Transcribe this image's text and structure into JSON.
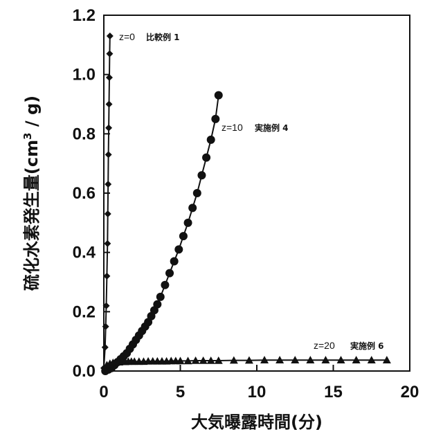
{
  "chart_data": {
    "type": "line",
    "title": "",
    "xlabel": "大気曝露時間(分)",
    "ylabel": "硫化水素発生量(cm³ / g)",
    "ylabel_parts": {
      "main": "硫化水素発生量(cm",
      "sup": "3",
      "tail": " / g)"
    },
    "xlim": [
      0,
      20
    ],
    "ylim": [
      0,
      1.2
    ],
    "x_ticks": [
      "0",
      "5",
      "10",
      "15",
      "20"
    ],
    "y_ticks": [
      "0.0",
      "0.2",
      "0.4",
      "0.6",
      "0.8",
      "1.0",
      "1.2"
    ],
    "grid": false,
    "series": [
      {
        "name": "z=0 比較例 1",
        "z_label": "z=0",
        "example_label": "比較例 1",
        "marker": "diamond",
        "x": [
          0,
          0.08,
          0.12,
          0.16,
          0.2,
          0.24,
          0.26,
          0.28,
          0.3,
          0.32,
          0.34,
          0.36,
          0.38,
          0.4
        ],
        "y": [
          0.01,
          0.08,
          0.15,
          0.22,
          0.32,
          0.43,
          0.53,
          0.63,
          0.73,
          0.82,
          0.9,
          0.99,
          1.07,
          1.13
        ]
      },
      {
        "name": "z=10 実施例 4",
        "z_label": "z=10",
        "example_label": "実施例 4",
        "marker": "circle",
        "x": [
          0.1,
          0.3,
          0.5,
          0.7,
          0.9,
          1.1,
          1.3,
          1.5,
          1.7,
          1.9,
          2.1,
          2.3,
          2.5,
          2.7,
          2.9,
          3.1,
          3.3,
          3.5,
          3.7,
          4.0,
          4.3,
          4.6,
          4.9,
          5.2,
          5.5,
          5.8,
          6.1,
          6.4,
          6.7,
          7.0,
          7.3,
          7.5
        ],
        "y": [
          0.0,
          0.005,
          0.01,
          0.02,
          0.03,
          0.04,
          0.05,
          0.06,
          0.075,
          0.09,
          0.105,
          0.12,
          0.135,
          0.15,
          0.165,
          0.185,
          0.205,
          0.225,
          0.25,
          0.29,
          0.33,
          0.37,
          0.41,
          0.455,
          0.5,
          0.55,
          0.6,
          0.66,
          0.72,
          0.78,
          0.85,
          0.93
        ]
      },
      {
        "name": "z=20 実施例 6",
        "z_label": "z=20",
        "example_label": "実施例 6",
        "marker": "triangle",
        "x": [
          0.2,
          0.4,
          0.6,
          0.8,
          1.0,
          1.2,
          1.4,
          1.6,
          1.8,
          2.0,
          2.3,
          2.6,
          2.9,
          3.2,
          3.5,
          3.8,
          4.1,
          4.4,
          4.7,
          5.0,
          5.5,
          6.0,
          6.5,
          7.0,
          7.5,
          8.5,
          9.5,
          10.5,
          11.5,
          12.5,
          13.5,
          14.5,
          15.5,
          16.5,
          17.5,
          18.5
        ],
        "y": [
          0.02,
          0.025,
          0.028,
          0.03,
          0.03,
          0.031,
          0.031,
          0.032,
          0.032,
          0.032,
          0.032,
          0.032,
          0.033,
          0.033,
          0.033,
          0.033,
          0.033,
          0.034,
          0.034,
          0.034,
          0.034,
          0.035,
          0.035,
          0.035,
          0.035,
          0.036,
          0.036,
          0.037,
          0.037,
          0.037,
          0.037,
          0.037,
          0.037,
          0.037,
          0.037,
          0.037
        ]
      }
    ]
  }
}
